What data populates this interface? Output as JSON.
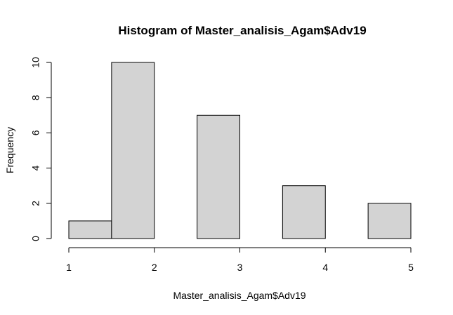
{
  "chart_data": {
    "type": "bar",
    "title": "Histogram of Master_analisis_Agam$Adv19",
    "xlabel": "Master_analisis_Agam$Adv19",
    "ylabel": "Frequency",
    "bins": [
      {
        "x0": 1.0,
        "x1": 1.5,
        "value": 1
      },
      {
        "x0": 1.5,
        "x1": 2.0,
        "value": 10
      },
      {
        "x0": 2.0,
        "x1": 2.5,
        "value": 0
      },
      {
        "x0": 2.5,
        "x1": 3.0,
        "value": 7
      },
      {
        "x0": 3.0,
        "x1": 3.5,
        "value": 0
      },
      {
        "x0": 3.5,
        "x1": 4.0,
        "value": 3
      },
      {
        "x0": 4.0,
        "x1": 4.5,
        "value": 0
      },
      {
        "x0": 4.5,
        "x1": 5.0,
        "value": 2
      }
    ],
    "xlim": [
      1,
      5
    ],
    "ylim": [
      0,
      10
    ],
    "xticks": [
      "1",
      "2",
      "3",
      "4",
      "5"
    ],
    "yticks": [
      "0",
      "2",
      "4",
      "6",
      "8",
      "10"
    ],
    "bar_color": "#d3d3d3",
    "grid": false
  }
}
